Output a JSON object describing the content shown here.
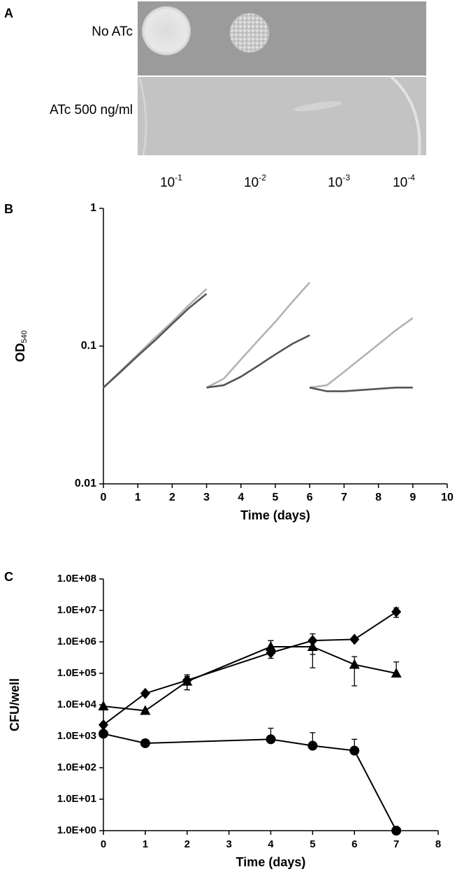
{
  "figure": {
    "panel_labels": [
      "A",
      "B",
      "C"
    ]
  },
  "plate": {
    "row_labels": [
      "No ATc",
      "ATc 500 ng/ml"
    ],
    "dilutions": [
      {
        "base": "10",
        "exponent": "-1"
      },
      {
        "base": "10",
        "exponent": "-2"
      },
      {
        "base": "10",
        "exponent": "-3"
      },
      {
        "base": "10",
        "exponent": "-4"
      }
    ]
  },
  "chart_data": [
    {
      "type": "line",
      "x_label": "Time (days)",
      "y_label": "OD",
      "y_label_subscript": "540",
      "log_y": true,
      "xlim": [
        0,
        10
      ],
      "xticks": [
        0,
        1,
        2,
        3,
        4,
        5,
        6,
        7,
        8,
        9,
        10
      ],
      "ylim": [
        0.01,
        1
      ],
      "yticks": [
        1,
        0.1,
        0.01
      ],
      "series": [
        {
          "color": "#b3b3b3",
          "x": [
            0,
            0.5,
            1,
            1.5,
            2,
            2.5,
            3
          ],
          "values": [
            0.05,
            0.066,
            0.087,
            0.115,
            0.15,
            0.2,
            0.26
          ]
        },
        {
          "color": "#b3b3b3",
          "x": [
            3,
            3.5,
            4,
            4.5,
            5,
            5.5,
            6
          ],
          "values": [
            0.05,
            0.058,
            0.08,
            0.11,
            0.15,
            0.21,
            0.29
          ]
        },
        {
          "color": "#b3b3b3",
          "x": [
            6,
            6.5,
            7,
            7.5,
            8,
            8.5,
            9
          ],
          "values": [
            0.05,
            0.052,
            0.065,
            0.082,
            0.103,
            0.13,
            0.16
          ]
        },
        {
          "color": "#555555",
          "x": [
            0,
            0.5,
            1,
            1.5,
            2,
            2.5,
            3
          ],
          "values": [
            0.05,
            0.065,
            0.085,
            0.11,
            0.145,
            0.19,
            0.24
          ]
        },
        {
          "color": "#555555",
          "x": [
            3,
            3.5,
            4,
            4.5,
            5,
            5.5,
            6
          ],
          "values": [
            0.05,
            0.052,
            0.06,
            0.072,
            0.087,
            0.104,
            0.12
          ]
        },
        {
          "color": "#555555",
          "x": [
            6,
            6.5,
            7,
            7.5,
            8,
            8.5,
            9
          ],
          "values": [
            0.05,
            0.047,
            0.047,
            0.048,
            0.049,
            0.05,
            0.05
          ]
        }
      ]
    },
    {
      "type": "line",
      "x_label": "Time (days)",
      "y_label": "CFU/well",
      "log_y": true,
      "xlim": [
        0,
        8
      ],
      "xticks": [
        0,
        1,
        2,
        3,
        4,
        5,
        6,
        7,
        8
      ],
      "ylim": [
        1,
        100000000
      ],
      "yticks": [
        {
          "value": 100000000,
          "label": "1.0E+08"
        },
        {
          "value": 10000000,
          "label": "1.0E+07"
        },
        {
          "value": 1000000,
          "label": "1.0E+06"
        },
        {
          "value": 100000,
          "label": "1.0E+05"
        },
        {
          "value": 10000,
          "label": "1.0E+04"
        },
        {
          "value": 1000,
          "label": "1.0E+03"
        },
        {
          "value": 100,
          "label": "1.0E+02"
        },
        {
          "value": 10,
          "label": "1.0E+01"
        },
        {
          "value": 1,
          "label": "1.0E+00"
        }
      ],
      "series": [
        {
          "color": "#000000",
          "marker": "diamond",
          "x": [
            0,
            1,
            2,
            4,
            5,
            6,
            7
          ],
          "values": [
            2300,
            23000,
            60000,
            450000,
            1100000,
            1200000,
            9000000
          ],
          "errors": [
            0,
            0,
            30000,
            650000,
            700000,
            0,
            3000000
          ]
        },
        {
          "color": "#000000",
          "marker": "triangle",
          "x": [
            0,
            1,
            2,
            4,
            5,
            6,
            7
          ],
          "values": [
            9000,
            6500,
            55000,
            700000,
            700000,
            190000,
            100000
          ],
          "errors": [
            0,
            0,
            25000,
            400000,
            550000,
            150000,
            130000
          ]
        },
        {
          "color": "#000000",
          "marker": "circle",
          "x": [
            0,
            1,
            4,
            5,
            6,
            7
          ],
          "values": [
            1200,
            600,
            800,
            500,
            350,
            1
          ],
          "errors": [
            0,
            0,
            1000,
            800,
            450,
            0
          ]
        }
      ]
    }
  ]
}
